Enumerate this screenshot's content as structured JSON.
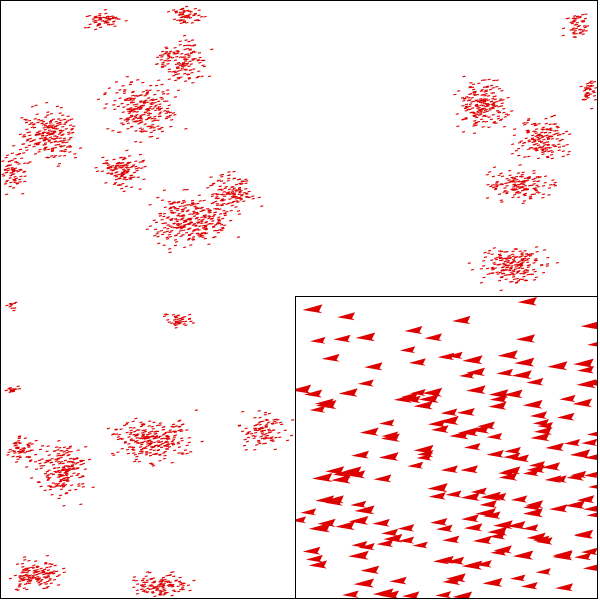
{
  "scene": {
    "agent_color": "#dd0000",
    "background_color": "#ffffff",
    "frame_color": "#000000",
    "agent_shape": "arrow-head",
    "heading": "west",
    "inset": {
      "shows": "zoomed-view",
      "location": "bottom-right"
    }
  }
}
